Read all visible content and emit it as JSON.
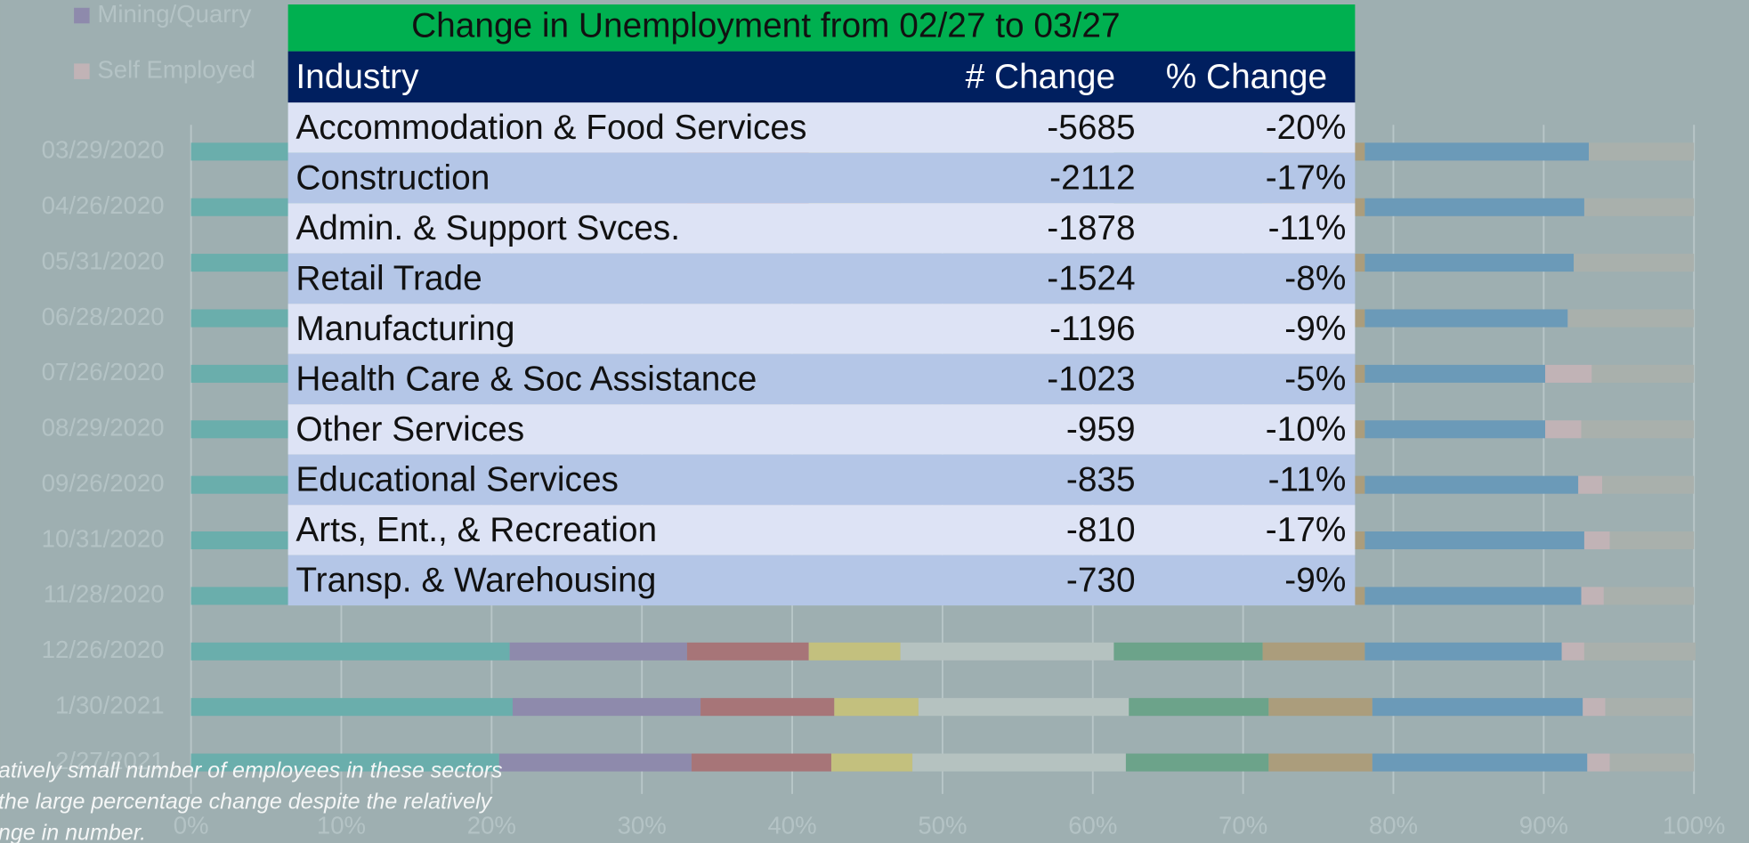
{
  "chart_data": {
    "type": "bar",
    "orientation": "horizontal",
    "stacked": true,
    "categories": [
      "03/29/2020",
      "04/26/2020",
      "05/31/2020",
      "06/28/2020",
      "07/26/2020",
      "08/29/2020",
      "09/26/2020",
      "10/31/2020",
      "11/28/2020",
      "12/26/2020",
      "1/30/2021",
      "2/27/2021"
    ],
    "series": [
      {
        "color": "#6aaeac",
        "values": [
          21.2,
          21.2,
          21.2,
          21.2,
          21.2,
          21.2,
          21.2,
          21.2,
          21.2,
          21.2,
          21.4,
          20.5
        ]
      },
      {
        "name": "Mining/Quarry",
        "color": "#8e8aac",
        "values": [
          11.8,
          11.8,
          11.8,
          11.8,
          11.8,
          11.8,
          11.8,
          11.8,
          11.8,
          11.8,
          12.5,
          12.8
        ]
      },
      {
        "color": "#a77578",
        "values": [
          8.1,
          8.1,
          8.1,
          8.1,
          8.1,
          8.1,
          8.1,
          8.1,
          8.1,
          8.1,
          8.9,
          9.3
        ]
      },
      {
        "color": "#c3c07e",
        "values": [
          6.1,
          6.1,
          6.1,
          6.1,
          6.1,
          6.1,
          6.1,
          6.1,
          6.1,
          6.1,
          5.6,
          5.4
        ]
      },
      {
        "color": "#b5c2c0",
        "values": [
          14.2,
          14.2,
          14.2,
          14.2,
          14.2,
          14.2,
          14.2,
          14.2,
          14.2,
          14.2,
          14.0,
          14.2
        ]
      },
      {
        "color": "#6ca38a",
        "values": [
          9.9,
          9.9,
          9.9,
          9.9,
          9.9,
          9.9,
          9.9,
          9.9,
          9.9,
          9.9,
          9.3,
          9.5
        ]
      },
      {
        "color": "#ab9d7c",
        "values": [
          6.8,
          6.8,
          6.8,
          6.8,
          6.8,
          6.8,
          6.8,
          6.8,
          6.8,
          6.8,
          6.9,
          6.9
        ]
      },
      {
        "color": "#6b9ab8",
        "values": [
          14.9,
          14.6,
          13.9,
          13.5,
          12.0,
          12.0,
          14.2,
          14.6,
          14.4,
          13.1,
          14.0,
          14.3
        ]
      },
      {
        "name": "Self Employed",
        "color": "#c1b3b6",
        "values": [
          0,
          0,
          0,
          0,
          3.1,
          2.4,
          1.6,
          1.7,
          1.5,
          1.5,
          1.5,
          1.5
        ]
      },
      {
        "color": "#a9b0ac",
        "values": [
          7.0,
          7.3,
          8.0,
          8.4,
          6.8,
          7.5,
          6.1,
          5.6,
          6.0,
          7.4,
          5.8,
          5.6
        ]
      }
    ],
    "xlim": [
      0,
      100
    ],
    "xticks": [
      {
        "value": 0,
        "label": "0%"
      },
      {
        "value": 10,
        "label": "10%"
      },
      {
        "value": 20,
        "label": "20%"
      },
      {
        "value": 30,
        "label": "30%"
      },
      {
        "value": 40,
        "label": "40%"
      },
      {
        "value": 50,
        "label": "50%"
      },
      {
        "value": 60,
        "label": "60%"
      },
      {
        "value": 70,
        "label": "70%"
      },
      {
        "value": 80,
        "label": "80%"
      },
      {
        "value": 90,
        "label": "90%"
      },
      {
        "value": 100,
        "label": "100%"
      }
    ],
    "grid": true,
    "annotation": [
      "atively small number of employees in these sectors",
      "the large percentage change despite the relatively",
      "nge in number."
    ]
  },
  "table": {
    "title": "Change in Unemployment from 02/27 to 03/27",
    "columns": [
      "Industry",
      "# Change",
      "% Change"
    ],
    "rows": [
      [
        "Accommodation & Food Services",
        -5685,
        "-20%"
      ],
      [
        "Construction",
        -2112,
        "-17%"
      ],
      [
        "Admin. & Support Svces.",
        -1878,
        "-11%"
      ],
      [
        "Retail Trade",
        -1524,
        "-8%"
      ],
      [
        "Manufacturing",
        -1196,
        "-9%"
      ],
      [
        "Health Care & Soc Assistance",
        -1023,
        "-5%"
      ],
      [
        "Other Services",
        -959,
        "-10%"
      ],
      [
        "Educational Services",
        -835,
        "-11%"
      ],
      [
        "Arts, Ent., & Recreation",
        -810,
        "-17%"
      ],
      [
        "Transp. & Warehousing",
        -730,
        "-9%"
      ]
    ]
  }
}
